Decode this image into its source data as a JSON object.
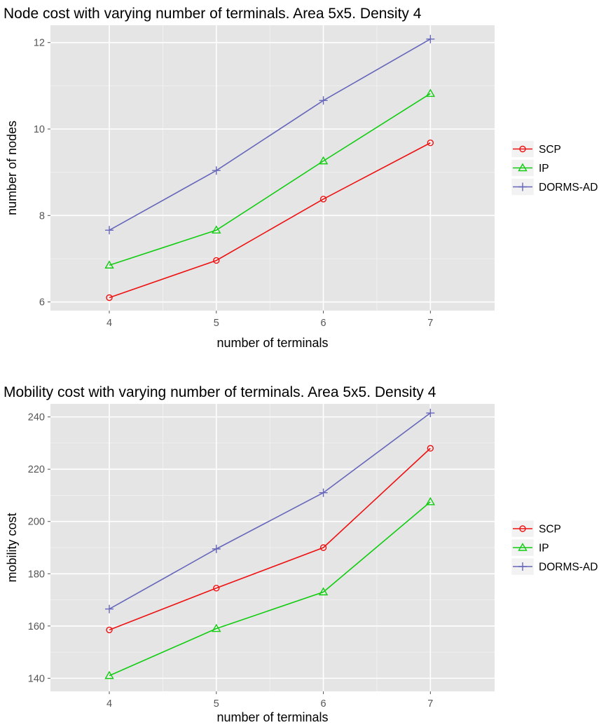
{
  "chart_data": [
    {
      "type": "line",
      "title": "Node cost with varying number of terminals. Area 5x5. Density 4",
      "xlabel": "number of terminals",
      "ylabel": "number of nodes",
      "x": [
        4,
        5,
        6,
        7
      ],
      "xlim": [
        3.45,
        7.6
      ],
      "ylim": [
        5.8,
        12.4
      ],
      "x_ticks": [
        "4",
        "5",
        "6",
        "7"
      ],
      "y_ticks": [
        "6",
        "8",
        "10",
        "12"
      ],
      "y_tick_values": [
        6,
        8,
        10,
        12
      ],
      "grid": true,
      "legend_position": "right",
      "series": [
        {
          "name": "SCP",
          "color": "#ee1111",
          "marker": "circle",
          "values": [
            6.1,
            6.96,
            8.38,
            9.68
          ]
        },
        {
          "name": "IP",
          "color": "#11cc11",
          "marker": "triangle",
          "values": [
            6.85,
            7.66,
            9.26,
            10.82
          ]
        },
        {
          "name": "DORMS-AD",
          "color": "#6666bb",
          "marker": "plus",
          "values": [
            7.66,
            9.04,
            10.66,
            12.08
          ]
        }
      ]
    },
    {
      "type": "line",
      "title": "Mobility cost with varying number of terminals. Area 5x5. Density 4",
      "xlabel": "number of terminals",
      "ylabel": "mobility cost",
      "x": [
        4,
        5,
        6,
        7
      ],
      "xlim": [
        3.45,
        7.6
      ],
      "ylim": [
        135,
        245
      ],
      "x_ticks": [
        "4",
        "5",
        "6",
        "7"
      ],
      "y_ticks": [
        "140",
        "160",
        "180",
        "200",
        "220",
        "240"
      ],
      "y_tick_values": [
        140,
        160,
        180,
        200,
        220,
        240
      ],
      "grid": true,
      "legend_position": "right",
      "series": [
        {
          "name": "SCP",
          "color": "#ee1111",
          "marker": "circle",
          "values": [
            158.5,
            174.5,
            190,
            228
          ]
        },
        {
          "name": "IP",
          "color": "#11cc11",
          "marker": "triangle",
          "values": [
            141,
            159,
            173,
            207.5
          ]
        },
        {
          "name": "DORMS-AD",
          "color": "#6666bb",
          "marker": "plus",
          "values": [
            166.5,
            189.5,
            211,
            241.5
          ]
        }
      ]
    }
  ]
}
